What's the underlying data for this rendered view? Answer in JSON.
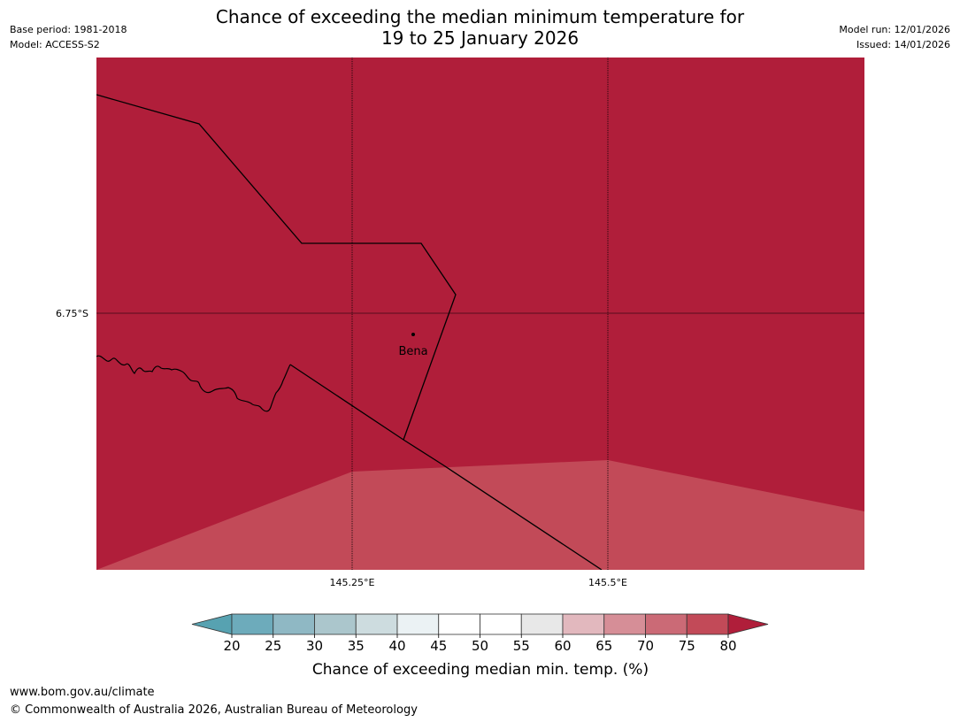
{
  "header": {
    "title_line1": "Chance of exceeding the median minimum temperature for",
    "title_line2": "19 to 25 January 2026",
    "base_period": "Base period: 1981-2018",
    "model": "Model: ACCESS-S2",
    "model_run": "Model run: 12/01/2026",
    "issued": "Issued: 14/01/2026"
  },
  "map": {
    "lat_label": "6.75°S",
    "lon_labels": [
      "145.25°E",
      "145.5°E"
    ],
    "town": "Bena",
    "colors": {
      "above_80": "#b01e3a",
      "band_75_80": "#c24a58",
      "boundary": "#000000",
      "gridline": "#000000"
    }
  },
  "legend": {
    "title": "Chance of exceeding median min. temp. (%)",
    "ticks": [
      "20",
      "25",
      "30",
      "35",
      "40",
      "45",
      "50",
      "55",
      "60",
      "65",
      "70",
      "75",
      "80"
    ],
    "colors": [
      "#57a2b1",
      "#6dabbb",
      "#8fb8c4",
      "#abc6cc",
      "#cddcdf",
      "#ebf2f4",
      "#ffffff",
      "#ffffff",
      "#e8e8e8",
      "#e2b8be",
      "#d68e97",
      "#cb6a76",
      "#c24a58",
      "#b01e3a"
    ]
  },
  "footer": {
    "url": "www.bom.gov.au/climate",
    "copyright": "© Commonwealth of Australia 2026, Australian Bureau of Meteorology"
  }
}
